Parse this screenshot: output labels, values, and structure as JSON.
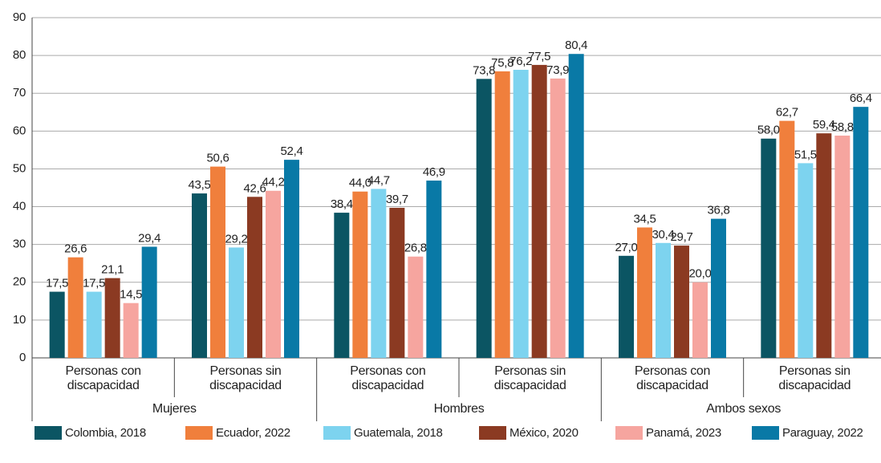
{
  "chart_data": {
    "type": "bar",
    "categories": [
      "Personas con discapacidad",
      "Personas sin discapacidad",
      "Personas con discapacidad",
      "Personas sin discapacidad",
      "Personas con discapacidad",
      "Personas sin discapacidad"
    ],
    "group_labels": [
      "Mujeres",
      "Hombres",
      "Ambos sexos"
    ],
    "series": [
      {
        "name": "Colombia, 2018",
        "color": "#0b5563",
        "values": [
          17.5,
          43.5,
          38.4,
          73.8,
          27.0,
          58.0
        ],
        "value_labels": [
          "17,5",
          "43,5",
          "38,4",
          "73,8",
          "27,0",
          "58,0"
        ]
      },
      {
        "name": "Ecuador, 2022",
        "color": "#f07f3c",
        "values": [
          26.6,
          50.6,
          44.0,
          75.8,
          34.5,
          62.7
        ],
        "value_labels": [
          "26,6",
          "50,6",
          "44,0",
          "75,8",
          "34,5",
          "62,7"
        ]
      },
      {
        "name": "Guatemala, 2018",
        "color": "#7dd3ef",
        "values": [
          17.5,
          29.2,
          44.7,
          76.2,
          30.4,
          51.5
        ],
        "value_labels": [
          "17,5",
          "29,2",
          "44,7",
          "76,2",
          "30,4",
          "51,5"
        ]
      },
      {
        "name": "México, 2020",
        "color": "#8b3a22",
        "values": [
          21.1,
          42.6,
          39.7,
          77.5,
          29.7,
          59.4
        ],
        "value_labels": [
          "21,1",
          "42,6",
          "39,7",
          "77,5",
          "29,7",
          "59,4"
        ]
      },
      {
        "name": "Panamá, 2023",
        "color": "#f6a59f",
        "values": [
          14.5,
          44.2,
          26.8,
          73.9,
          20.0,
          58.8
        ],
        "value_labels": [
          "14,5",
          "44,2",
          "26,8",
          "73,9",
          "20,0",
          "58,8"
        ]
      },
      {
        "name": "Paraguay, 2022",
        "color": "#0979a6",
        "values": [
          29.4,
          52.4,
          46.9,
          80.4,
          36.8,
          66.4
        ],
        "value_labels": [
          "29,4",
          "52,4",
          "46,9",
          "80,4",
          "36,8",
          "66,4"
        ]
      }
    ],
    "ylim": [
      0,
      90
    ],
    "yticks": [
      0,
      10,
      20,
      30,
      40,
      50,
      60,
      70,
      80,
      90
    ],
    "grid": true,
    "legend": "bottom"
  }
}
